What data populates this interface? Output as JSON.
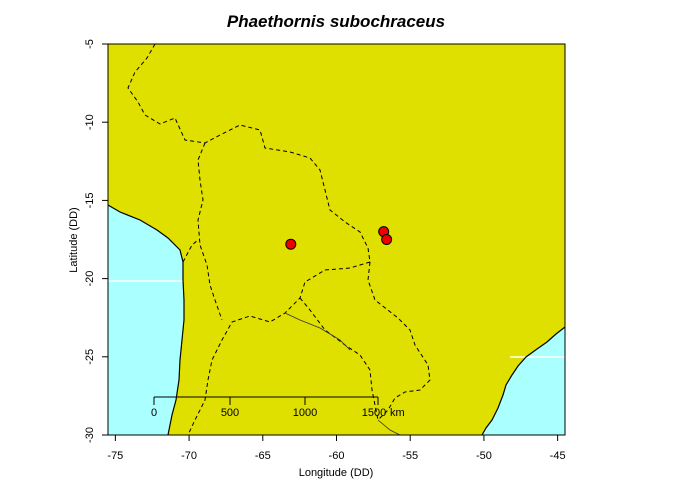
{
  "map": {
    "title": "Phaethornis subochraceus",
    "xlabel": "Longitude (DD)",
    "ylabel": "Latitude (DD)",
    "xlim": [
      -75.5,
      -44.5
    ],
    "ylim": [
      -30,
      -5
    ],
    "x_ticks": [
      -75,
      -70,
      -65,
      -60,
      -55,
      -50,
      -45
    ],
    "y_ticks": [
      -5,
      -10,
      -15,
      -20,
      -25,
      -30
    ],
    "land_color": "#e0e000",
    "ocean_color": "#aaffff",
    "point_color": "#ee0000",
    "points": [
      {
        "lon": -63.1,
        "lat": -17.8
      },
      {
        "lon": -56.8,
        "lat": -17.0
      },
      {
        "lon": -56.6,
        "lat": -17.5
      }
    ],
    "scale_bar": {
      "labels": [
        "0",
        "500",
        "1000",
        "1500"
      ],
      "unit": "km"
    }
  }
}
